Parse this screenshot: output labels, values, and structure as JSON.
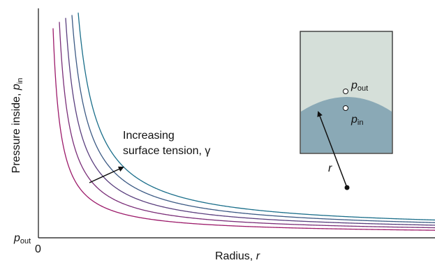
{
  "axes": {
    "y_label": {
      "text": "Pressure inside, ",
      "symbol": "p",
      "subscript": "in"
    },
    "x_label": {
      "text": "Radius, ",
      "symbol": "r"
    },
    "baseline_label": {
      "symbol": "p",
      "subscript": "out"
    },
    "origin_label": "0"
  },
  "annotation": {
    "lines": [
      "Increasing",
      "surface tension, γ"
    ]
  },
  "inset": {
    "outside_label": {
      "symbol": "p",
      "subscript": "out"
    },
    "inside_label": {
      "symbol": "p",
      "subscript": "in"
    },
    "radius_label": "r"
  }
}
